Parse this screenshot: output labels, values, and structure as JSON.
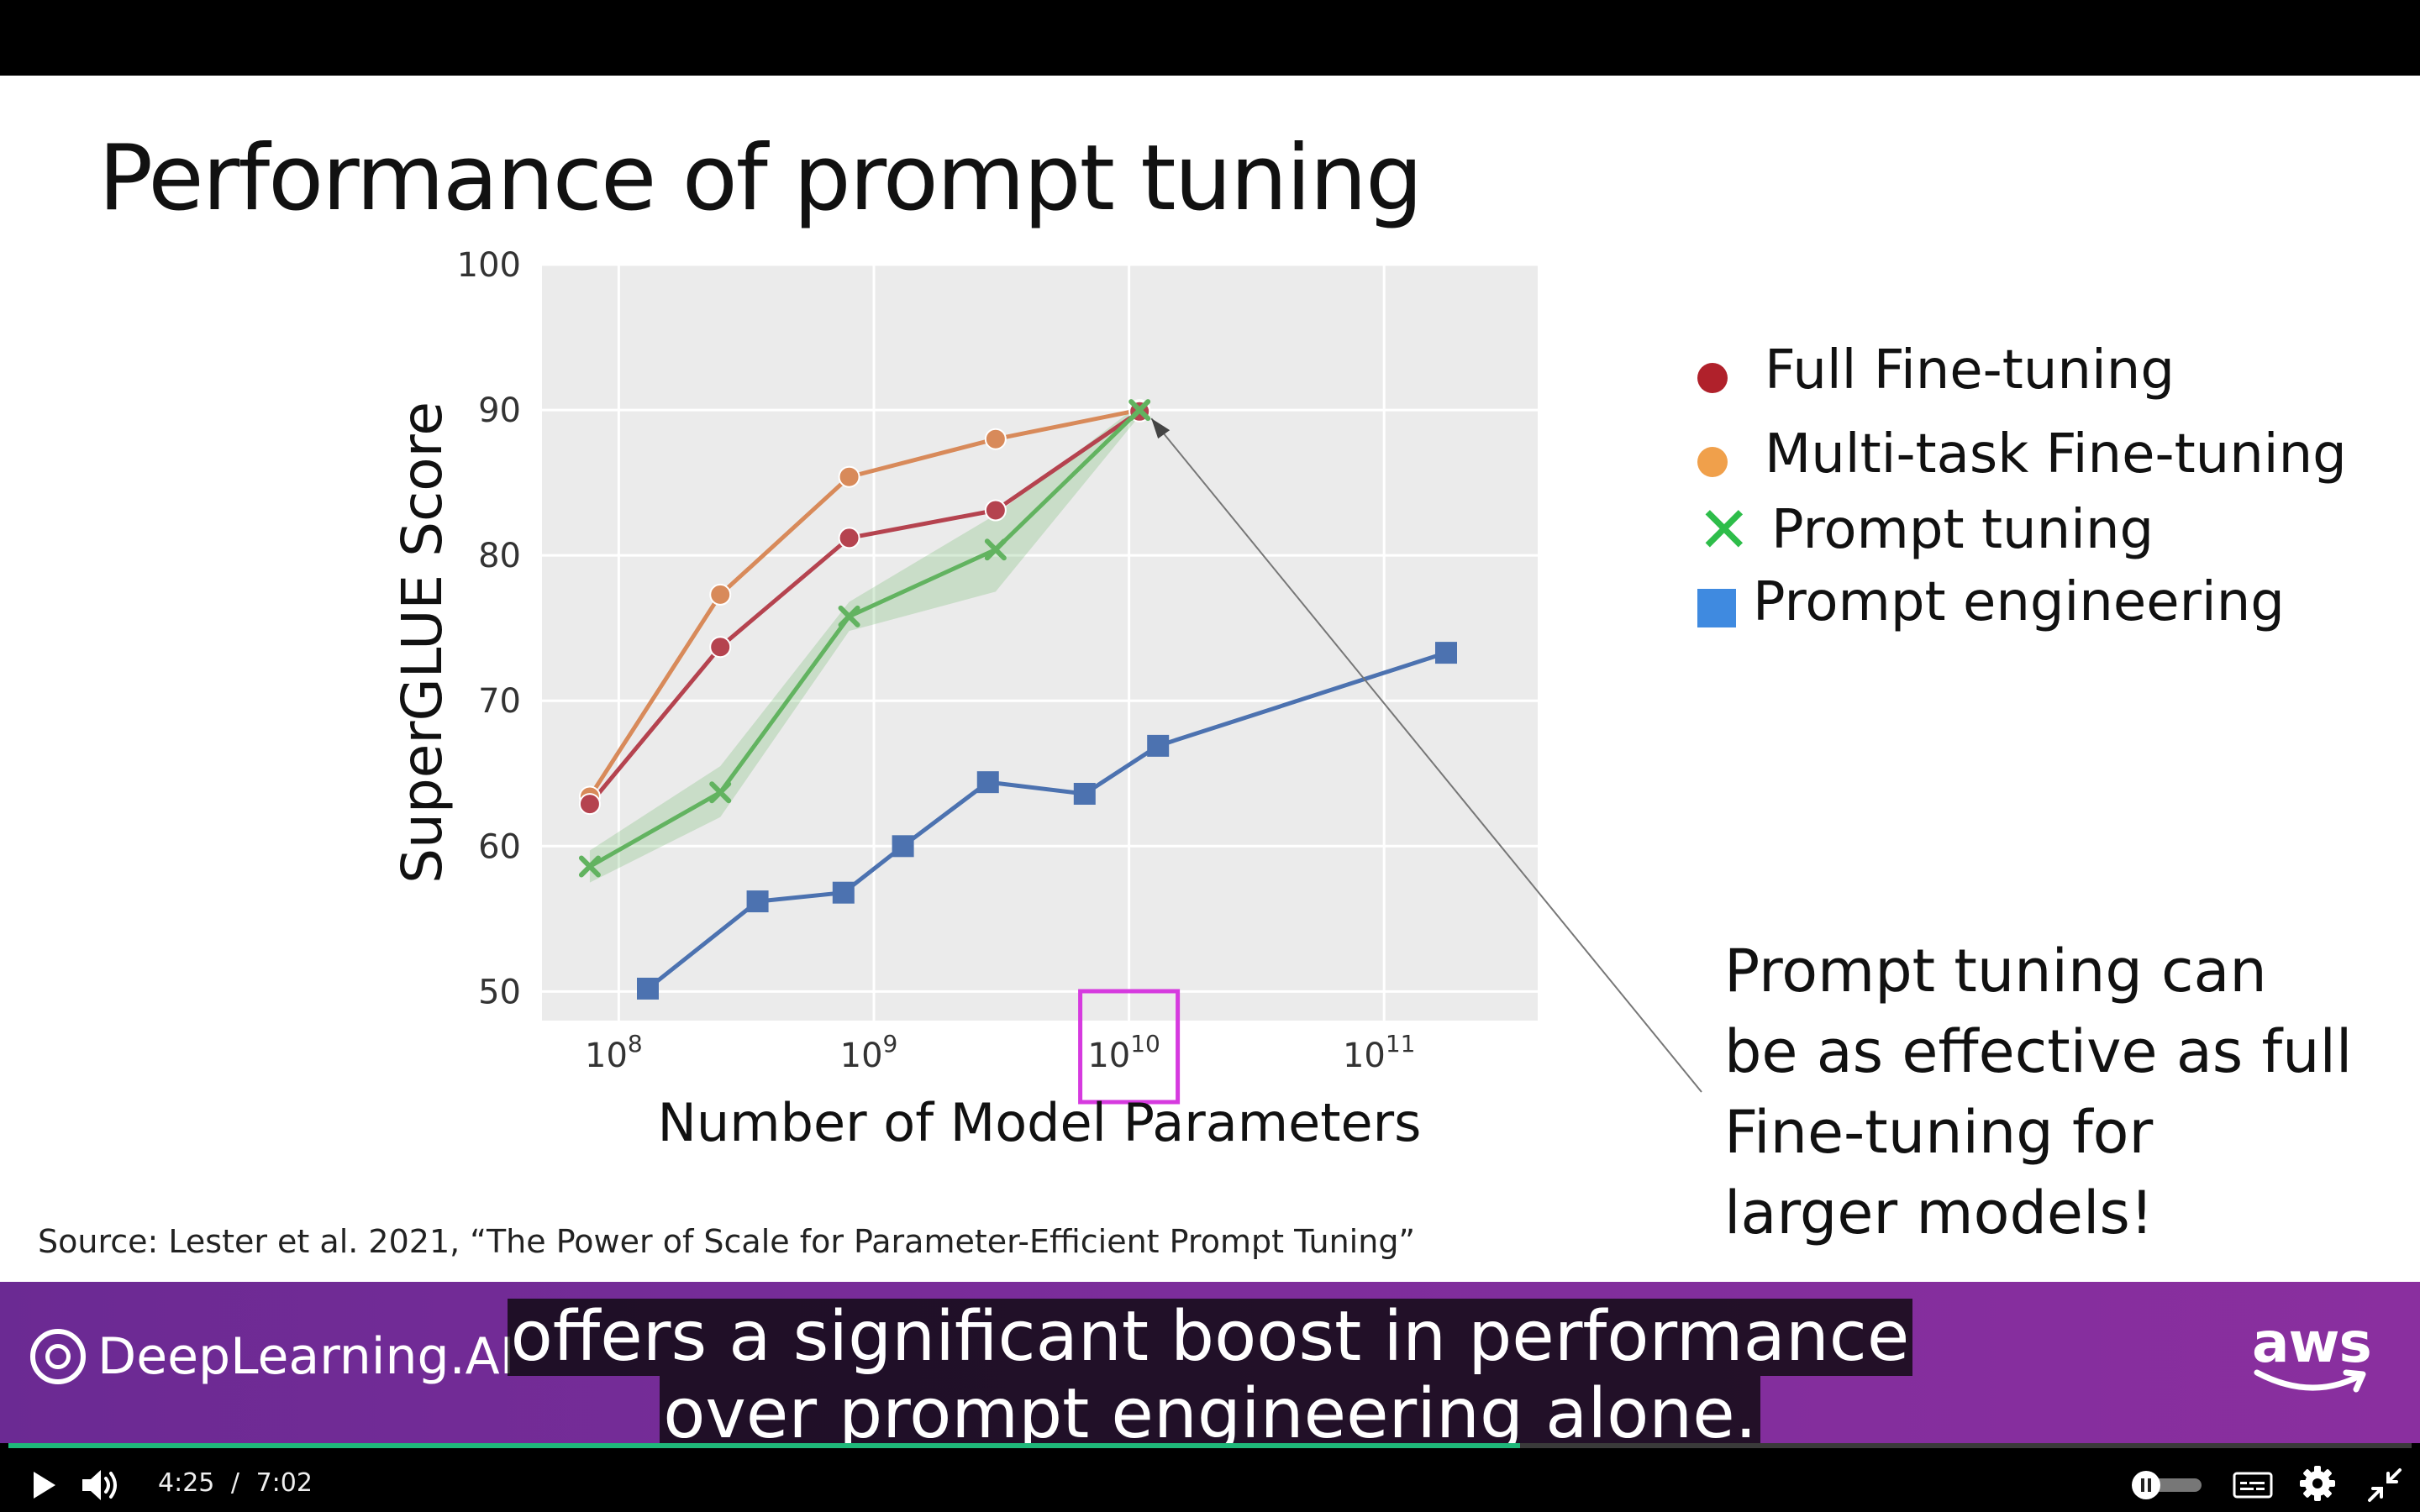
{
  "slide": {
    "title": "Performance of prompt tuning",
    "callout_lines": [
      "Prompt tuning can",
      "be as effective as full",
      "Fine-tuning for",
      "larger models!"
    ],
    "source": "Source:  Lester et al. 2021, “The Power of Scale for Parameter-Efficient Prompt Tuning”",
    "legend": [
      {
        "label": "Full Fine-tuning",
        "marker": "circle",
        "color": "#b0212b"
      },
      {
        "label": "Multi-task Fine-tuning",
        "marker": "circle",
        "color": "#f0a04b"
      },
      {
        "label": "Prompt tuning",
        "marker": "x",
        "color": "#2ebd4a"
      },
      {
        "label": "Prompt engineering",
        "marker": "square",
        "color": "#3f8ae0"
      }
    ]
  },
  "chart_data": {
    "type": "line",
    "xlabel": "Number of Model Parameters",
    "ylabel": "SuperGLUE Score",
    "x_scale": "log",
    "xlim": [
      50000000,
      400000000000
    ],
    "ylim": [
      48,
      100
    ],
    "yticks": [
      50,
      60,
      70,
      80,
      90,
      100
    ],
    "xticks": [
      {
        "value": 100000000,
        "base": "10",
        "exp": "8"
      },
      {
        "value": 1000000000,
        "base": "10",
        "exp": "9"
      },
      {
        "value": 10000000000,
        "base": "10",
        "exp": "10"
      },
      {
        "value": 100000000000,
        "base": "10",
        "exp": "11"
      }
    ],
    "highlighted_xtick": 10000000000,
    "grid": true,
    "series": [
      {
        "name": "Multi-task Fine-tuning",
        "color": "#d88a5a",
        "marker": "circle",
        "x": [
          77000000,
          250000000,
          800000000,
          3000000000,
          11000000000
        ],
        "y": [
          63.4,
          77.3,
          85.4,
          88.0,
          90.0
        ]
      },
      {
        "name": "Full Fine-tuning",
        "color": "#b5434f",
        "marker": "circle",
        "x": [
          77000000,
          250000000,
          800000000,
          3000000000,
          11000000000
        ],
        "y": [
          62.9,
          73.7,
          81.2,
          83.1,
          89.9
        ]
      },
      {
        "name": "Prompt tuning",
        "color": "#62b360",
        "marker": "x",
        "x": [
          77000000,
          250000000,
          800000000,
          3000000000,
          11000000000
        ],
        "y": [
          58.6,
          63.7,
          75.8,
          80.4,
          90.0
        ],
        "band_low": [
          57.5,
          62.0,
          74.8,
          77.5,
          89.6
        ],
        "band_high": [
          59.7,
          65.5,
          76.8,
          82.8,
          90.4
        ]
      },
      {
        "name": "Prompt engineering",
        "color": "#4c72b0",
        "marker": "square",
        "x": [
          130000000,
          350000000,
          760000000,
          1300000000,
          2800000000,
          6700000000,
          13000000000,
          175000000000
        ],
        "y": [
          50.2,
          56.2,
          56.8,
          60.0,
          64.4,
          63.6,
          66.9,
          73.3
        ]
      }
    ],
    "annotation": {
      "from_x": 11000000000,
      "from_y": 90.0
    }
  },
  "brand": {
    "left_logo": "DeepLearning.AI",
    "right_logo": "aws"
  },
  "captions": {
    "line1": "offers a significant boost in performance",
    "line2": "over prompt engineering alone."
  },
  "player": {
    "current_time": "4:25",
    "separator": "/",
    "duration": "7:02",
    "progress_fraction": 0.629
  }
}
